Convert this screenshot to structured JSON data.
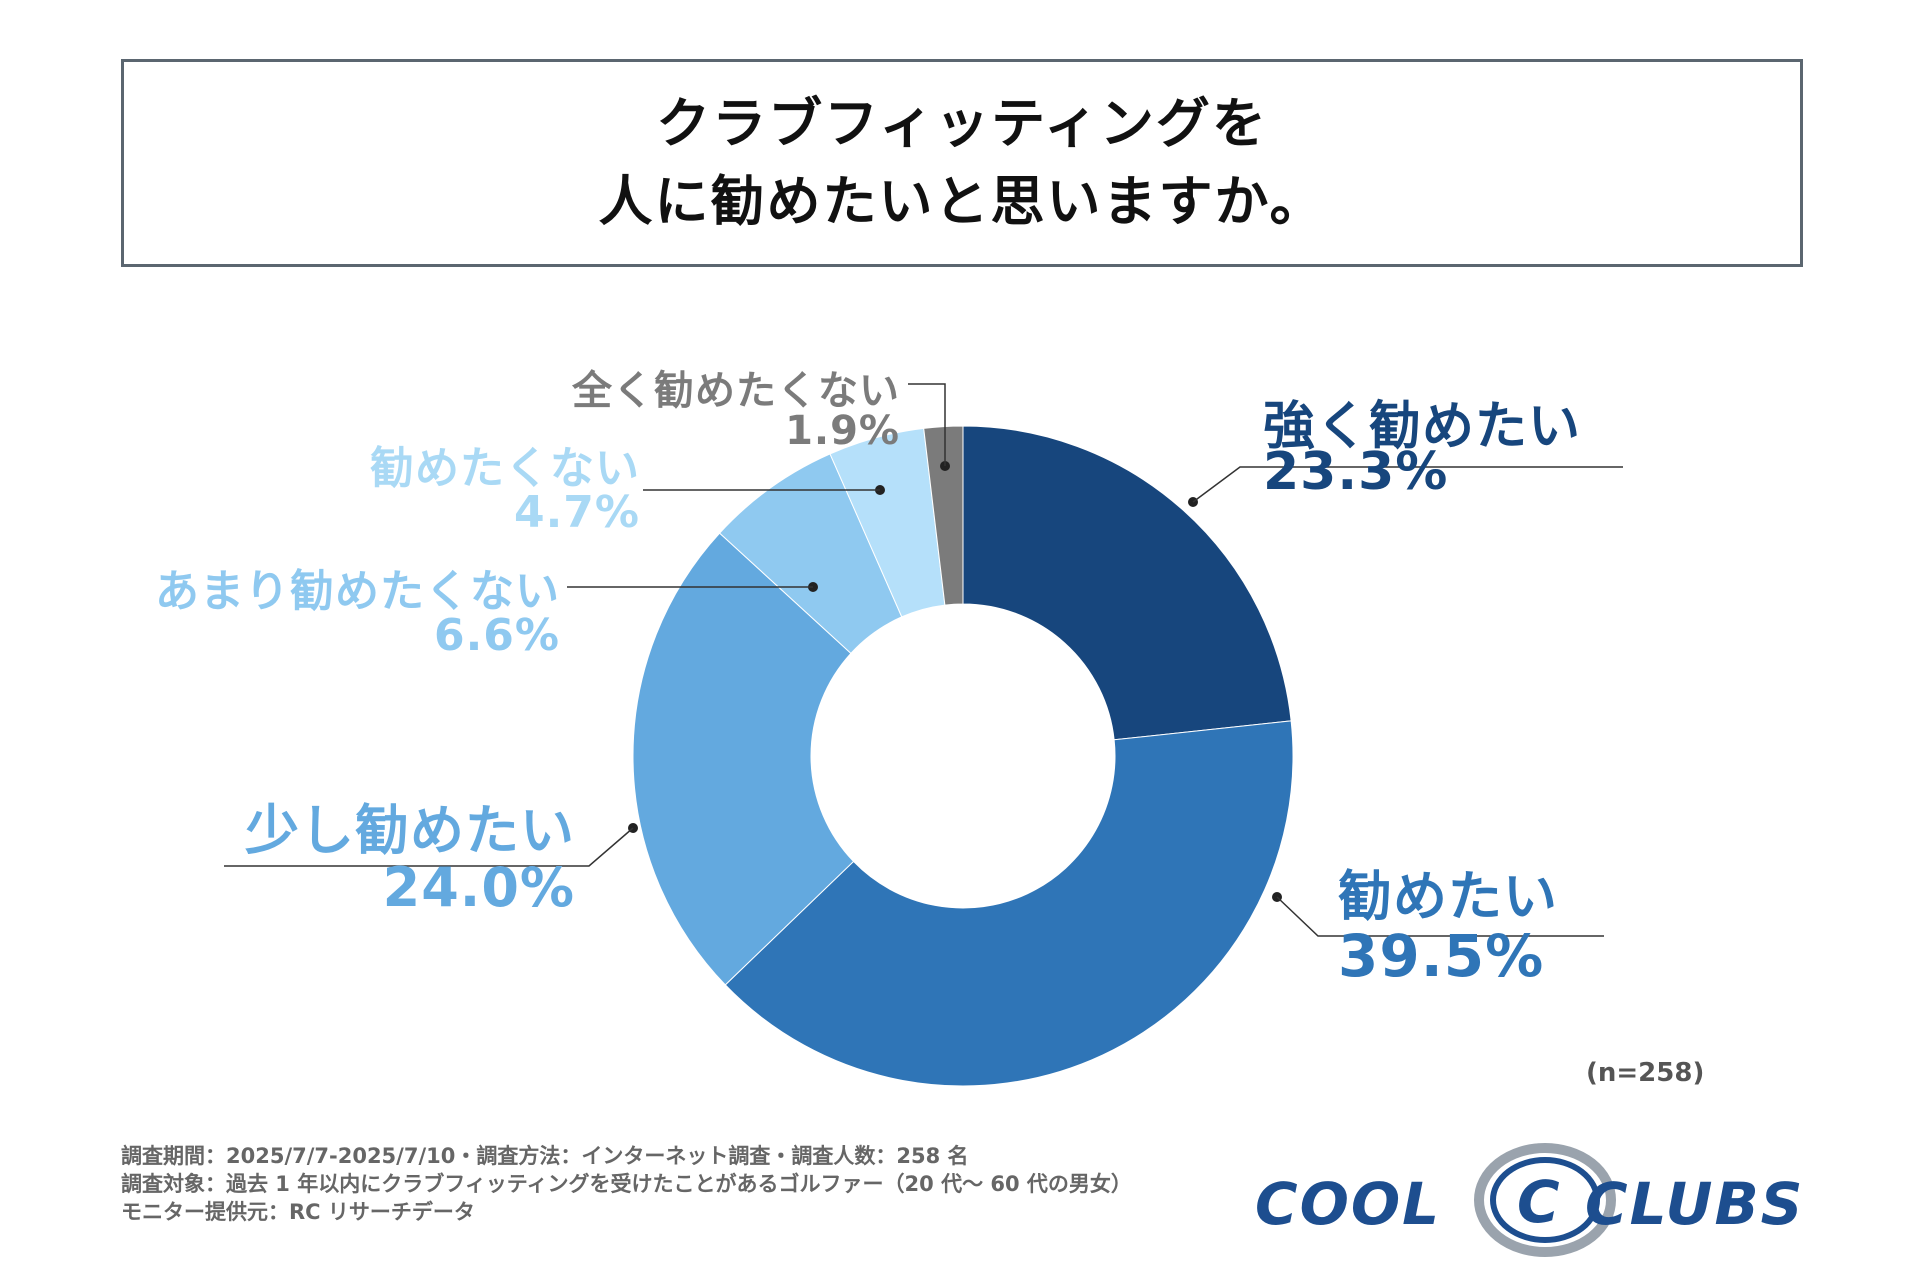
{
  "title": {
    "line1": "クラブフィッティングを",
    "line2": "人に勧めたいと思いますか。"
  },
  "chart_data": {
    "type": "pie",
    "donut": true,
    "total_label": "(n=258)",
    "slices": [
      {
        "label": "強く勧めたい",
        "value": 23.3,
        "value_label": "23.3%",
        "color": "#17467d",
        "label_color": "#17467d"
      },
      {
        "label": "勧めたい",
        "value": 39.5,
        "value_label": "39.5%",
        "color": "#2f75b7",
        "label_color": "#2f75b7"
      },
      {
        "label": "少し勧めたい",
        "value": 24.0,
        "value_label": "24.0%",
        "color": "#63a9df",
        "label_color": "#63a9df"
      },
      {
        "label": "あまり勧めたくない",
        "value": 6.6,
        "value_label": "6.6%",
        "color": "#8fc9f0",
        "label_color": "#8fc9f0"
      },
      {
        "label": "勧めたくない",
        "value": 4.7,
        "value_label": "4.7%",
        "color": "#b5e0fa",
        "label_color": "#a9d9f5"
      },
      {
        "label": "全く勧めたくない",
        "value": 1.9,
        "value_label": "1.9%",
        "color": "#7b7b7b",
        "label_color": "#7b7b7b"
      }
    ]
  },
  "footer": {
    "line1": "調査期間：2025/7/7-2025/7/10・調査方法：インターネット調査・調査人数：258 名",
    "line2": "調査対象：過去 1 年以内にクラブフィッティングを受けたことがあるゴルファー（20 代〜 60 代の男女）",
    "line3": "モニター提供元：RC リサーチデータ"
  },
  "logo": {
    "word1": "COOL",
    "word2": "CLUBS",
    "colors": {
      "text": "#1d4e8f",
      "ring": "#9aa3ad"
    }
  }
}
